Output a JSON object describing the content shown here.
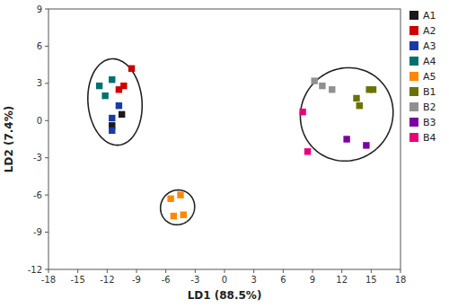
{
  "chart_data": {
    "type": "scatter",
    "xlabel": "LD1 (88.5%)",
    "ylabel": "LD2 (7.4%)",
    "marker": "square",
    "grid": false,
    "legend": "right",
    "series": [
      {
        "name": "A1",
        "color": "#1a1a1a",
        "x": [
          -10.5,
          -11.5
        ],
        "values": [
          0.5,
          -0.4
        ]
      },
      {
        "name": "A2",
        "color": "#cc0000",
        "x": [
          -9.5,
          -10.3,
          -10.8
        ],
        "values": [
          4.2,
          2.8,
          2.5
        ]
      },
      {
        "name": "A3",
        "color": "#1a3aaa",
        "x": [
          -10.8,
          -11.5,
          -11.5
        ],
        "values": [
          1.2,
          0.2,
          -0.8
        ]
      },
      {
        "name": "A4",
        "color": "#007070",
        "x": [
          -12.8,
          -11.5,
          -12.2
        ],
        "values": [
          2.8,
          3.3,
          2.0
        ]
      },
      {
        "name": "A5",
        "color": "#ff8800",
        "x": [
          -5.5,
          -4.5,
          -5.2,
          -4.2
        ],
        "values": [
          -6.3,
          -6.0,
          -7.7,
          -7.6
        ]
      },
      {
        "name": "B1",
        "color": "#6b7300",
        "x": [
          13.5,
          14.8,
          13.8,
          15.2
        ],
        "values": [
          1.8,
          2.5,
          1.2,
          2.5
        ]
      },
      {
        "name": "B2",
        "color": "#909090",
        "x": [
          9.2,
          10.0,
          11.0
        ],
        "values": [
          3.2,
          2.8,
          2.5
        ]
      },
      {
        "name": "B3",
        "color": "#7b00a0",
        "x": [
          12.5,
          14.5
        ],
        "values": [
          -1.5,
          -2.0
        ]
      },
      {
        "name": "B4",
        "color": "#e8007a",
        "x": [
          8.0,
          8.5
        ],
        "values": [
          0.7,
          -2.5
        ]
      }
    ],
    "ellipses": [
      {
        "x": -11.2,
        "y": 1.5,
        "width": 5.5,
        "height": 7.0,
        "angle": 10
      },
      {
        "x": -4.8,
        "y": -7.0,
        "width": 3.5,
        "height": 2.8,
        "angle": 5
      },
      {
        "x": 12.5,
        "y": 0.5,
        "width": 9.5,
        "height": 7.5,
        "angle": 5
      }
    ],
    "xlim": [
      -18,
      18
    ],
    "ylim": [
      -12,
      9
    ],
    "xticks": [
      -18,
      -15,
      -12,
      -9,
      -6,
      -3,
      0,
      3,
      6,
      9,
      12,
      15,
      18
    ],
    "yticks": [
      -12,
      -9,
      -6,
      -3,
      0,
      3,
      6,
      9
    ]
  }
}
